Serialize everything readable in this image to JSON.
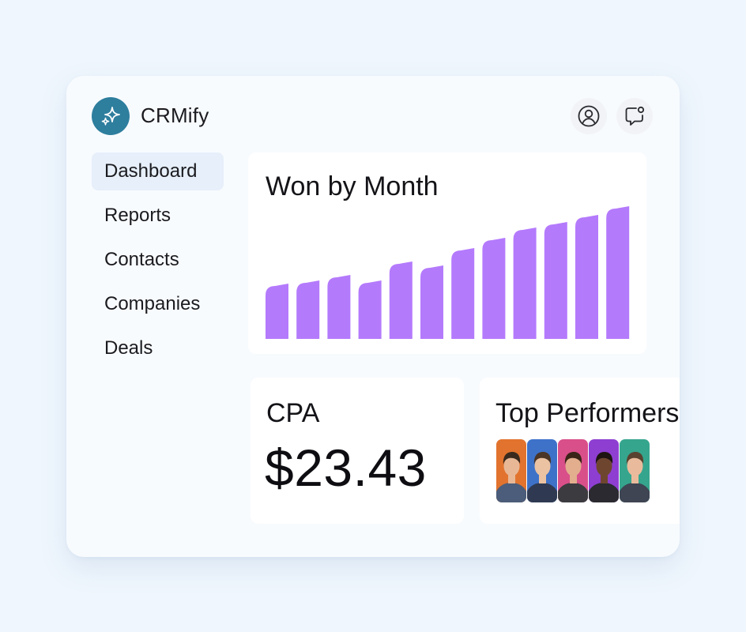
{
  "app": {
    "name": "CRMify",
    "logo_icon": "sparkle-icon",
    "accent_color": "#2E7E9E"
  },
  "header": {
    "profile_icon": "user-circle-icon",
    "chat_icon": "chat-notification-icon"
  },
  "sidebar": {
    "items": [
      {
        "label": "Dashboard",
        "active": true
      },
      {
        "label": "Reports",
        "active": false
      },
      {
        "label": "Contacts",
        "active": false
      },
      {
        "label": "Companies",
        "active": false
      },
      {
        "label": "Deals",
        "active": false
      }
    ]
  },
  "won_chart": {
    "title": "Won by Month",
    "chart_data": {
      "type": "bar",
      "title": "Won by Month",
      "values": [
        67,
        71,
        78,
        71,
        95,
        90,
        112,
        125,
        138,
        145,
        154,
        165
      ],
      "bar_color": "#B47AFC",
      "grid": false,
      "legend": "none"
    }
  },
  "cpa": {
    "label": "CPA",
    "value": "$23.43"
  },
  "top_performers": {
    "title": "Top Performers",
    "avatars": [
      {
        "bg": "#E2732E",
        "shirt": "#4B5D7A",
        "skin": "#E8B896",
        "hair": "#3A2A1E"
      },
      {
        "bg": "#3E72C9",
        "shirt": "#2F3A52",
        "skin": "#EBC2A2",
        "hair": "#4A3526"
      },
      {
        "bg": "#D94F8A",
        "shirt": "#3B3B40",
        "skin": "#E2AE8E",
        "hair": "#3A2418"
      },
      {
        "bg": "#8E3FD1",
        "shirt": "#2A2A30",
        "skin": "#6E4630",
        "hair": "#1E1412"
      },
      {
        "bg": "#36A58E",
        "shirt": "#3F4553",
        "skin": "#E9BB9C",
        "hair": "#5A4230"
      }
    ]
  }
}
